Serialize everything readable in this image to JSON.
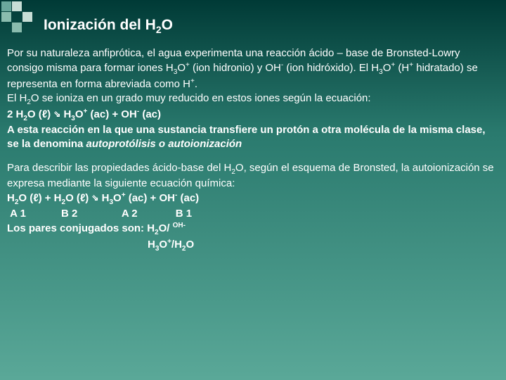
{
  "colors": {
    "bg_top": "#003a36",
    "bg_mid": "#2a7a6e",
    "bg_bottom": "#5aa898",
    "text": "#ffffff",
    "sq_dark": "#6aa89c",
    "sq_light": "#c8ded6",
    "sq_mid": "#8abcae"
  },
  "title": {
    "prefix": "Ionización del H",
    "sub": "2",
    "suffix": "O"
  },
  "p1": {
    "t1": "Por su naturaleza anfiprótica, el agua experimenta una reacción ácido – base de Bronsted-Lowry consigo misma para formar iones H",
    "t2": "O",
    "t3": " (ion hidronio) y OH",
    "t4": " (ion hidróxido). El H",
    "t5": "O",
    "t6": " (H",
    "t7": " hidratado) se representa en forma abreviada como H",
    "t8": ".",
    "t9": "El H",
    "t10": "O se ioniza en un grado muy reducido en estos iones según la ecuación:"
  },
  "eq1": {
    "a": "2 H",
    "b": "O (ℓ) ",
    "arrow": "⇘",
    "c": " H",
    "d": "O",
    "e": " (ac) + OH",
    "f": " (ac)"
  },
  "stmt": {
    "a": "A esta reacción en la que una sustancia transfiere un protón a otra molécula de la misma clase, se la denomina ",
    "b": "autoprotólisis o autoionización"
  },
  "p2": {
    "a": "Para describir las propiedades ácido-base del H",
    "b": "O, según el esquema de Bronsted, la autoionización se expresa mediante la siguiente ecuación química:"
  },
  "eq2": {
    "a": "H",
    "b": "O (ℓ) + H",
    "c": "O (ℓ) ",
    "arrow": "⇘",
    "d": " H",
    "e": "O",
    "f": " (ac) + OH",
    "g": " (ac)",
    "labels": " A 1            B 2               A 2             B 1"
  },
  "pairs": {
    "a": "Los pares conjugados son: H",
    "b": "O/ ",
    "c": "OH",
    "d": "H",
    "e": "O",
    "f": "/H",
    "g": "O"
  }
}
